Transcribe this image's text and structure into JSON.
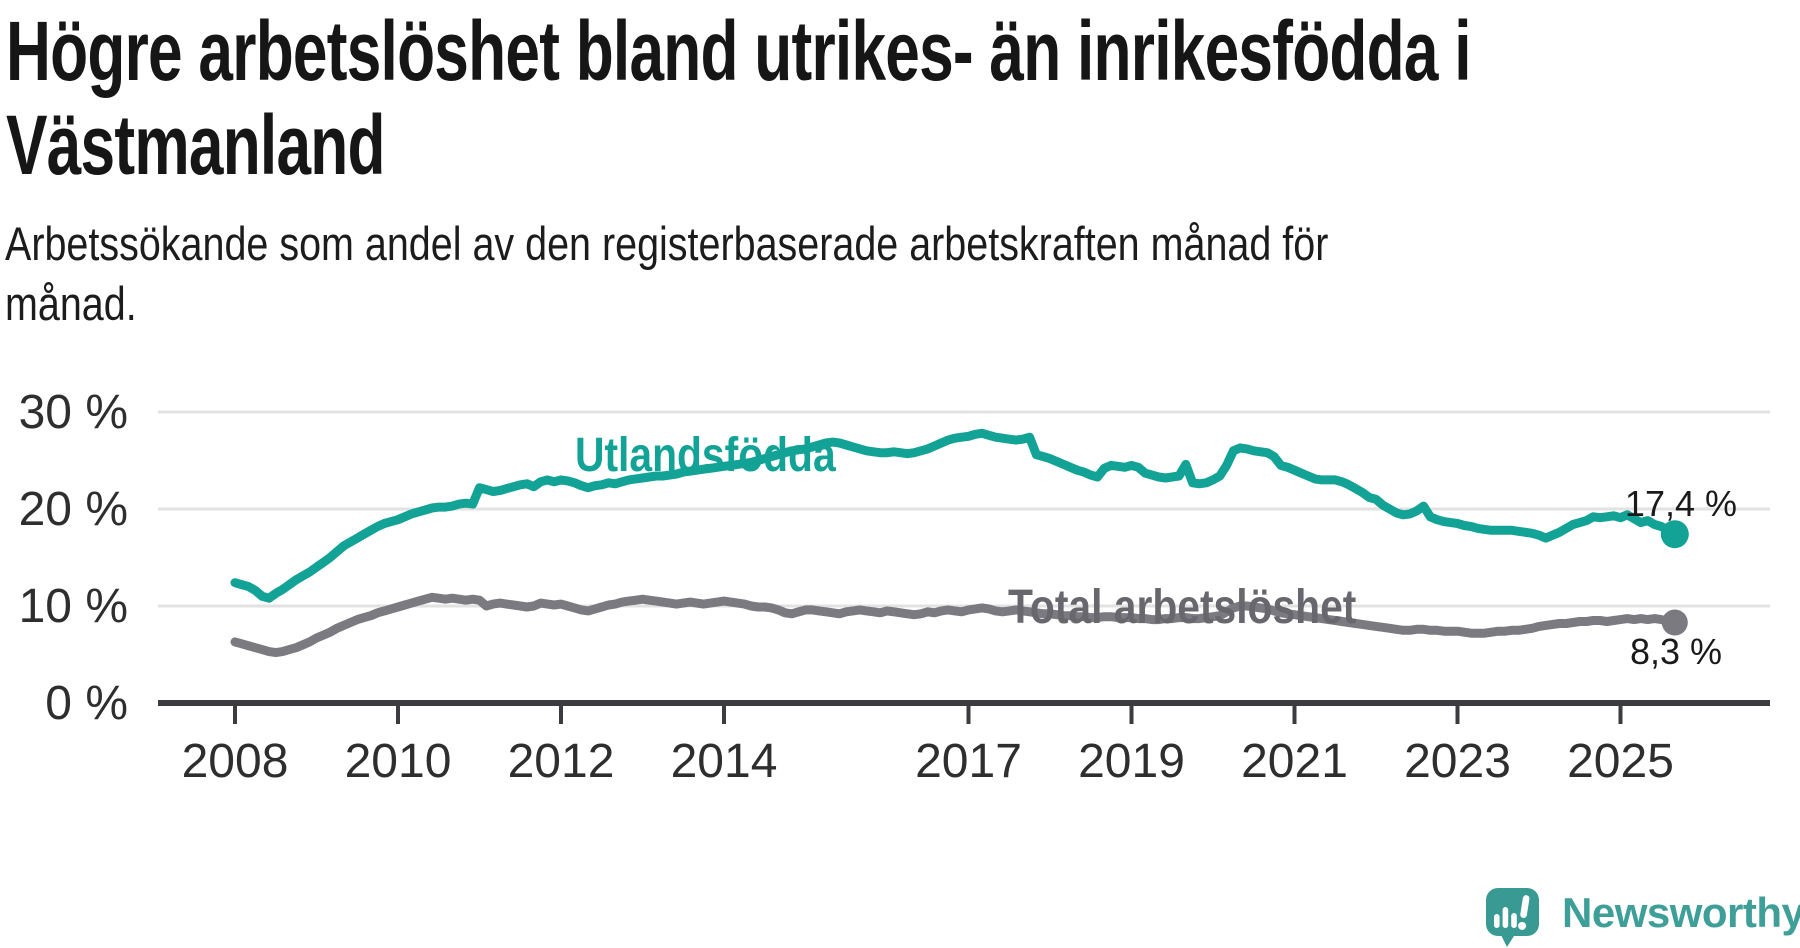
{
  "title_lines": [
    "Högre arbetslöshet bland utrikes- än inrikesfödda i",
    "Västmanland"
  ],
  "subtitle_lines": [
    "Arbetssökande som andel av den registerbaserade arbetskraften månad för",
    "månad."
  ],
  "chart_data": {
    "type": "line",
    "title": "Högre arbetslöshet bland utrikes- än inrikesfödda i Västmanland",
    "subtitle": "Arbetssökande som andel av den registerbaserade arbetskraften månad för månad.",
    "x_unit": "month",
    "x_start": "2008-01",
    "x_end": "2025-09",
    "ylim": [
      0,
      32
    ],
    "grid": "horizontal",
    "legend_position": "inline-labels",
    "y_ticks": [
      {
        "value": 30,
        "label": "30 %"
      },
      {
        "value": 20,
        "label": "20 %"
      },
      {
        "value": 10,
        "label": "10 %"
      },
      {
        "value": 0,
        "label": "0 %"
      }
    ],
    "x_ticks": [
      {
        "year": 2008,
        "label": "2008"
      },
      {
        "year": 2010,
        "label": "2010"
      },
      {
        "year": 2012,
        "label": "2012"
      },
      {
        "year": 2014,
        "label": "2014"
      },
      {
        "year": 2017,
        "label": "2017"
      },
      {
        "year": 2019,
        "label": "2019"
      },
      {
        "year": 2021,
        "label": "2021"
      },
      {
        "year": 2023,
        "label": "2023"
      },
      {
        "year": 2025,
        "label": "2025"
      }
    ],
    "series": [
      {
        "name": "Utlandsfödda",
        "color": "#12a296",
        "end_value": 17.4,
        "end_label": "17,4 %",
        "values": [
          12.4,
          12.2,
          12.0,
          11.6,
          11.0,
          10.8,
          11.3,
          11.7,
          12.2,
          12.7,
          13.1,
          13.5,
          14.0,
          14.5,
          15.0,
          15.6,
          16.2,
          16.6,
          17.0,
          17.4,
          17.8,
          18.2,
          18.5,
          18.7,
          18.9,
          19.2,
          19.5,
          19.7,
          19.9,
          20.1,
          20.2,
          20.2,
          20.3,
          20.5,
          20.6,
          20.5,
          22.2,
          22.0,
          21.8,
          21.9,
          22.1,
          22.3,
          22.5,
          22.6,
          22.3,
          22.8,
          23.0,
          22.8,
          23.0,
          22.9,
          22.7,
          22.4,
          22.2,
          22.4,
          22.5,
          22.7,
          22.6,
          22.8,
          23.0,
          23.1,
          23.2,
          23.3,
          23.4,
          23.4,
          23.5,
          23.6,
          23.8,
          23.9,
          24.0,
          24.1,
          24.2,
          24.3,
          24.4,
          24.5,
          24.6,
          24.7,
          24.8,
          25.0,
          25.2,
          25.4,
          25.6,
          25.8,
          26.0,
          26.1,
          26.2,
          26.4,
          26.6,
          26.8,
          26.9,
          26.8,
          26.6,
          26.4,
          26.2,
          26.0,
          25.9,
          25.8,
          25.8,
          25.9,
          25.8,
          25.7,
          25.8,
          26.0,
          26.2,
          26.5,
          26.8,
          27.1,
          27.3,
          27.4,
          27.5,
          27.7,
          27.8,
          27.6,
          27.4,
          27.3,
          27.2,
          27.1,
          27.2,
          27.4,
          25.6,
          25.4,
          25.2,
          24.9,
          24.6,
          24.3,
          24.0,
          23.8,
          23.5,
          23.3,
          24.2,
          24.5,
          24.4,
          24.3,
          24.5,
          24.3,
          23.7,
          23.5,
          23.3,
          23.2,
          23.3,
          23.4,
          24.6,
          22.7,
          22.6,
          22.7,
          23.0,
          23.4,
          24.5,
          26.0,
          26.3,
          26.2,
          26.0,
          25.9,
          25.8,
          25.4,
          24.5,
          24.3,
          24.0,
          23.7,
          23.4,
          23.1,
          23.0,
          23.0,
          23.0,
          22.8,
          22.5,
          22.1,
          21.7,
          21.2,
          21.0,
          20.4,
          20.0,
          19.6,
          19.4,
          19.5,
          19.8,
          20.3,
          19.2,
          18.9,
          18.7,
          18.6,
          18.5,
          18.3,
          18.2,
          18.0,
          17.9,
          17.8,
          17.8,
          17.8,
          17.8,
          17.7,
          17.6,
          17.5,
          17.3,
          17.0,
          17.3,
          17.6,
          18.0,
          18.4,
          18.6,
          18.8,
          19.2,
          19.1,
          19.2,
          19.3,
          19.1,
          19.4,
          19.0,
          18.6,
          18.8,
          18.4,
          18.2,
          17.8,
          17.4
        ]
      },
      {
        "name": "Total arbetslöshet",
        "color": "#7b7a80",
        "end_value": 8.3,
        "end_label": "8,3 %",
        "values": [
          6.3,
          6.1,
          5.9,
          5.7,
          5.5,
          5.3,
          5.2,
          5.3,
          5.5,
          5.7,
          6.0,
          6.3,
          6.7,
          7.0,
          7.3,
          7.7,
          8.0,
          8.3,
          8.6,
          8.8,
          9.0,
          9.3,
          9.5,
          9.7,
          9.9,
          10.1,
          10.3,
          10.5,
          10.7,
          10.9,
          10.8,
          10.7,
          10.8,
          10.7,
          10.6,
          10.7,
          10.6,
          10.0,
          10.2,
          10.3,
          10.2,
          10.1,
          10.0,
          9.9,
          10.0,
          10.3,
          10.2,
          10.1,
          10.2,
          10.0,
          9.8,
          9.6,
          9.5,
          9.7,
          9.9,
          10.1,
          10.2,
          10.4,
          10.5,
          10.6,
          10.7,
          10.6,
          10.5,
          10.4,
          10.3,
          10.2,
          10.3,
          10.4,
          10.3,
          10.2,
          10.3,
          10.4,
          10.5,
          10.4,
          10.3,
          10.2,
          10.0,
          9.9,
          9.9,
          9.8,
          9.6,
          9.3,
          9.2,
          9.4,
          9.6,
          9.6,
          9.5,
          9.4,
          9.3,
          9.2,
          9.4,
          9.5,
          9.6,
          9.5,
          9.4,
          9.3,
          9.5,
          9.4,
          9.3,
          9.2,
          9.1,
          9.2,
          9.4,
          9.3,
          9.5,
          9.6,
          9.5,
          9.4,
          9.6,
          9.7,
          9.8,
          9.7,
          9.5,
          9.4,
          9.5,
          9.6,
          9.5,
          9.4,
          9.3,
          9.2,
          9.2,
          9.1,
          9.0,
          9.0,
          8.9,
          8.9,
          8.8,
          8.8,
          8.9,
          8.9,
          8.8,
          8.8,
          8.8,
          8.7,
          8.7,
          8.6,
          8.6,
          8.7,
          8.7,
          8.8,
          8.8,
          8.7,
          8.7,
          8.8,
          8.9,
          9.0,
          9.4,
          9.8,
          10.0,
          10.0,
          9.9,
          9.8,
          9.7,
          9.5,
          9.3,
          9.2,
          9.1,
          9.0,
          8.9,
          8.8,
          8.7,
          8.6,
          8.5,
          8.4,
          8.3,
          8.2,
          8.1,
          8.0,
          7.9,
          7.8,
          7.7,
          7.6,
          7.5,
          7.5,
          7.6,
          7.6,
          7.5,
          7.5,
          7.4,
          7.4,
          7.4,
          7.3,
          7.2,
          7.2,
          7.2,
          7.3,
          7.4,
          7.4,
          7.5,
          7.5,
          7.6,
          7.7,
          7.9,
          8.0,
          8.1,
          8.2,
          8.2,
          8.3,
          8.4,
          8.4,
          8.5,
          8.5,
          8.4,
          8.5,
          8.6,
          8.7,
          8.6,
          8.7,
          8.6,
          8.7,
          8.6,
          8.4,
          8.3
        ]
      }
    ],
    "colors": {
      "grid": "#e2e2e2",
      "axis": "#3b3b40",
      "tick_text": "#2e2e2e"
    }
  },
  "branding": {
    "logo_text": "Newsworthy",
    "icon": "newsworthy-chart-bubble-icon",
    "color": "#3e9e98"
  }
}
